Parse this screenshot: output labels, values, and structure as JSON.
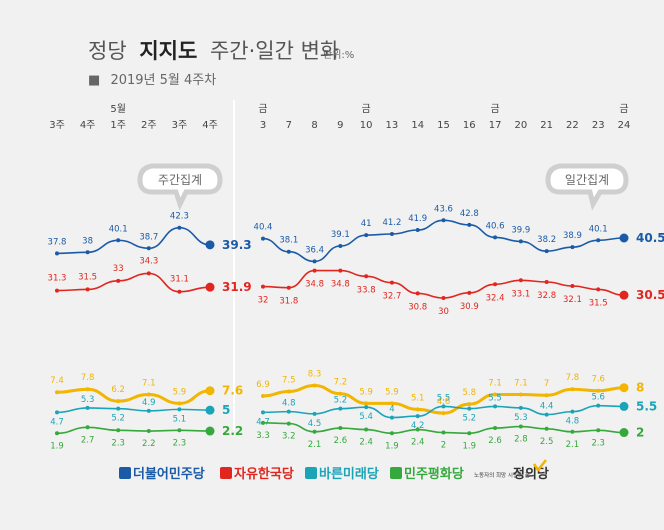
{
  "header": {
    "title_plain": "정당",
    "title_bold": "지지도",
    "title_rest": "주간·일간 변화",
    "unit": "단위:%",
    "subtitle_marker": "■",
    "subtitle": "2019년 5월 4주차"
  },
  "bubbles": {
    "weekly": "주간집계",
    "daily": "일간집계"
  },
  "legend": [
    {
      "name": "더불어민주당",
      "color": "#1a5aa6"
    },
    {
      "name": "자유한국당",
      "color": "#e0261f"
    },
    {
      "name": "바른미래당",
      "color": "#1aa4b8"
    },
    {
      "name": "민주평화당",
      "color": "#35a93c"
    },
    {
      "name": "정의당",
      "color": "#333333"
    }
  ],
  "legend_note": "노동자의 희망 시민의 꿈",
  "chart_data": {
    "type": "line",
    "weekly": {
      "x_top": [
        "",
        "",
        "5월",
        "",
        "",
        ""
      ],
      "x": [
        "3주",
        "4주",
        "1주",
        "2주",
        "3주",
        "4주"
      ],
      "series": [
        {
          "party": "더불어민주당",
          "color": "#1a5aa6",
          "values": [
            37.8,
            38.0,
            40.1,
            38.7,
            42.3,
            39.3
          ]
        },
        {
          "party": "자유한국당",
          "color": "#e0261f",
          "values": [
            31.3,
            31.5,
            33.0,
            34.3,
            31.1,
            31.9
          ]
        },
        {
          "party": "정의당",
          "color": "#f2b500",
          "values": [
            7.4,
            7.8,
            6.2,
            7.1,
            5.9,
            7.6
          ]
        },
        {
          "party": "바른미래당",
          "color": "#1aa4b8",
          "values": [
            4.7,
            5.3,
            5.2,
            4.9,
            5.1,
            5.0
          ]
        },
        {
          "party": "민주평화당",
          "color": "#35a93c",
          "values": [
            1.9,
            2.7,
            2.3,
            2.2,
            2.3,
            2.2
          ]
        }
      ]
    },
    "daily": {
      "x_top": [
        "금",
        "",
        "",
        "",
        "금",
        "",
        "",
        "",
        "",
        "금",
        "",
        "",
        "",
        "",
        "금"
      ],
      "x": [
        "3",
        "7",
        "8",
        "9",
        "10",
        "13",
        "14",
        "15",
        "16",
        "17",
        "20",
        "21",
        "22",
        "23",
        "24"
      ],
      "series": [
        {
          "party": "더불어민주당",
          "color": "#1a5aa6",
          "values": [
            40.4,
            38.1,
            36.4,
            39.1,
            41.0,
            41.2,
            41.9,
            43.6,
            42.8,
            40.6,
            39.9,
            38.2,
            38.9,
            40.1,
            40.5
          ]
        },
        {
          "party": "자유한국당",
          "color": "#e0261f",
          "values": [
            32.0,
            31.8,
            34.8,
            34.8,
            33.8,
            32.7,
            30.8,
            30,
            30.9,
            32.4,
            33.1,
            32.8,
            32.1,
            31.5,
            30.5
          ]
        },
        {
          "party": "정의당",
          "color": "#f2b500",
          "values": [
            6.9,
            7.5,
            8.3,
            7.2,
            5.9,
            5.9,
            5.1,
            4.6,
            5.8,
            7.1,
            7.1,
            7.0,
            7.8,
            7.6,
            8.0
          ]
        },
        {
          "party": "바른미래당",
          "color": "#1aa4b8",
          "values": [
            4.7,
            4.8,
            4.5,
            5.2,
            5.4,
            4.0,
            4.2,
            5.5,
            5.2,
            5.5,
            5.3,
            4.4,
            4.8,
            5.6,
            5.5
          ]
        },
        {
          "party": "민주평화당",
          "color": "#35a93c",
          "values": [
            3.3,
            3.2,
            2.1,
            2.6,
            2.4,
            1.9,
            2.4,
            2,
            1.9,
            2.6,
            2.8,
            2.5,
            2.1,
            2.3,
            2.0
          ]
        }
      ]
    }
  }
}
